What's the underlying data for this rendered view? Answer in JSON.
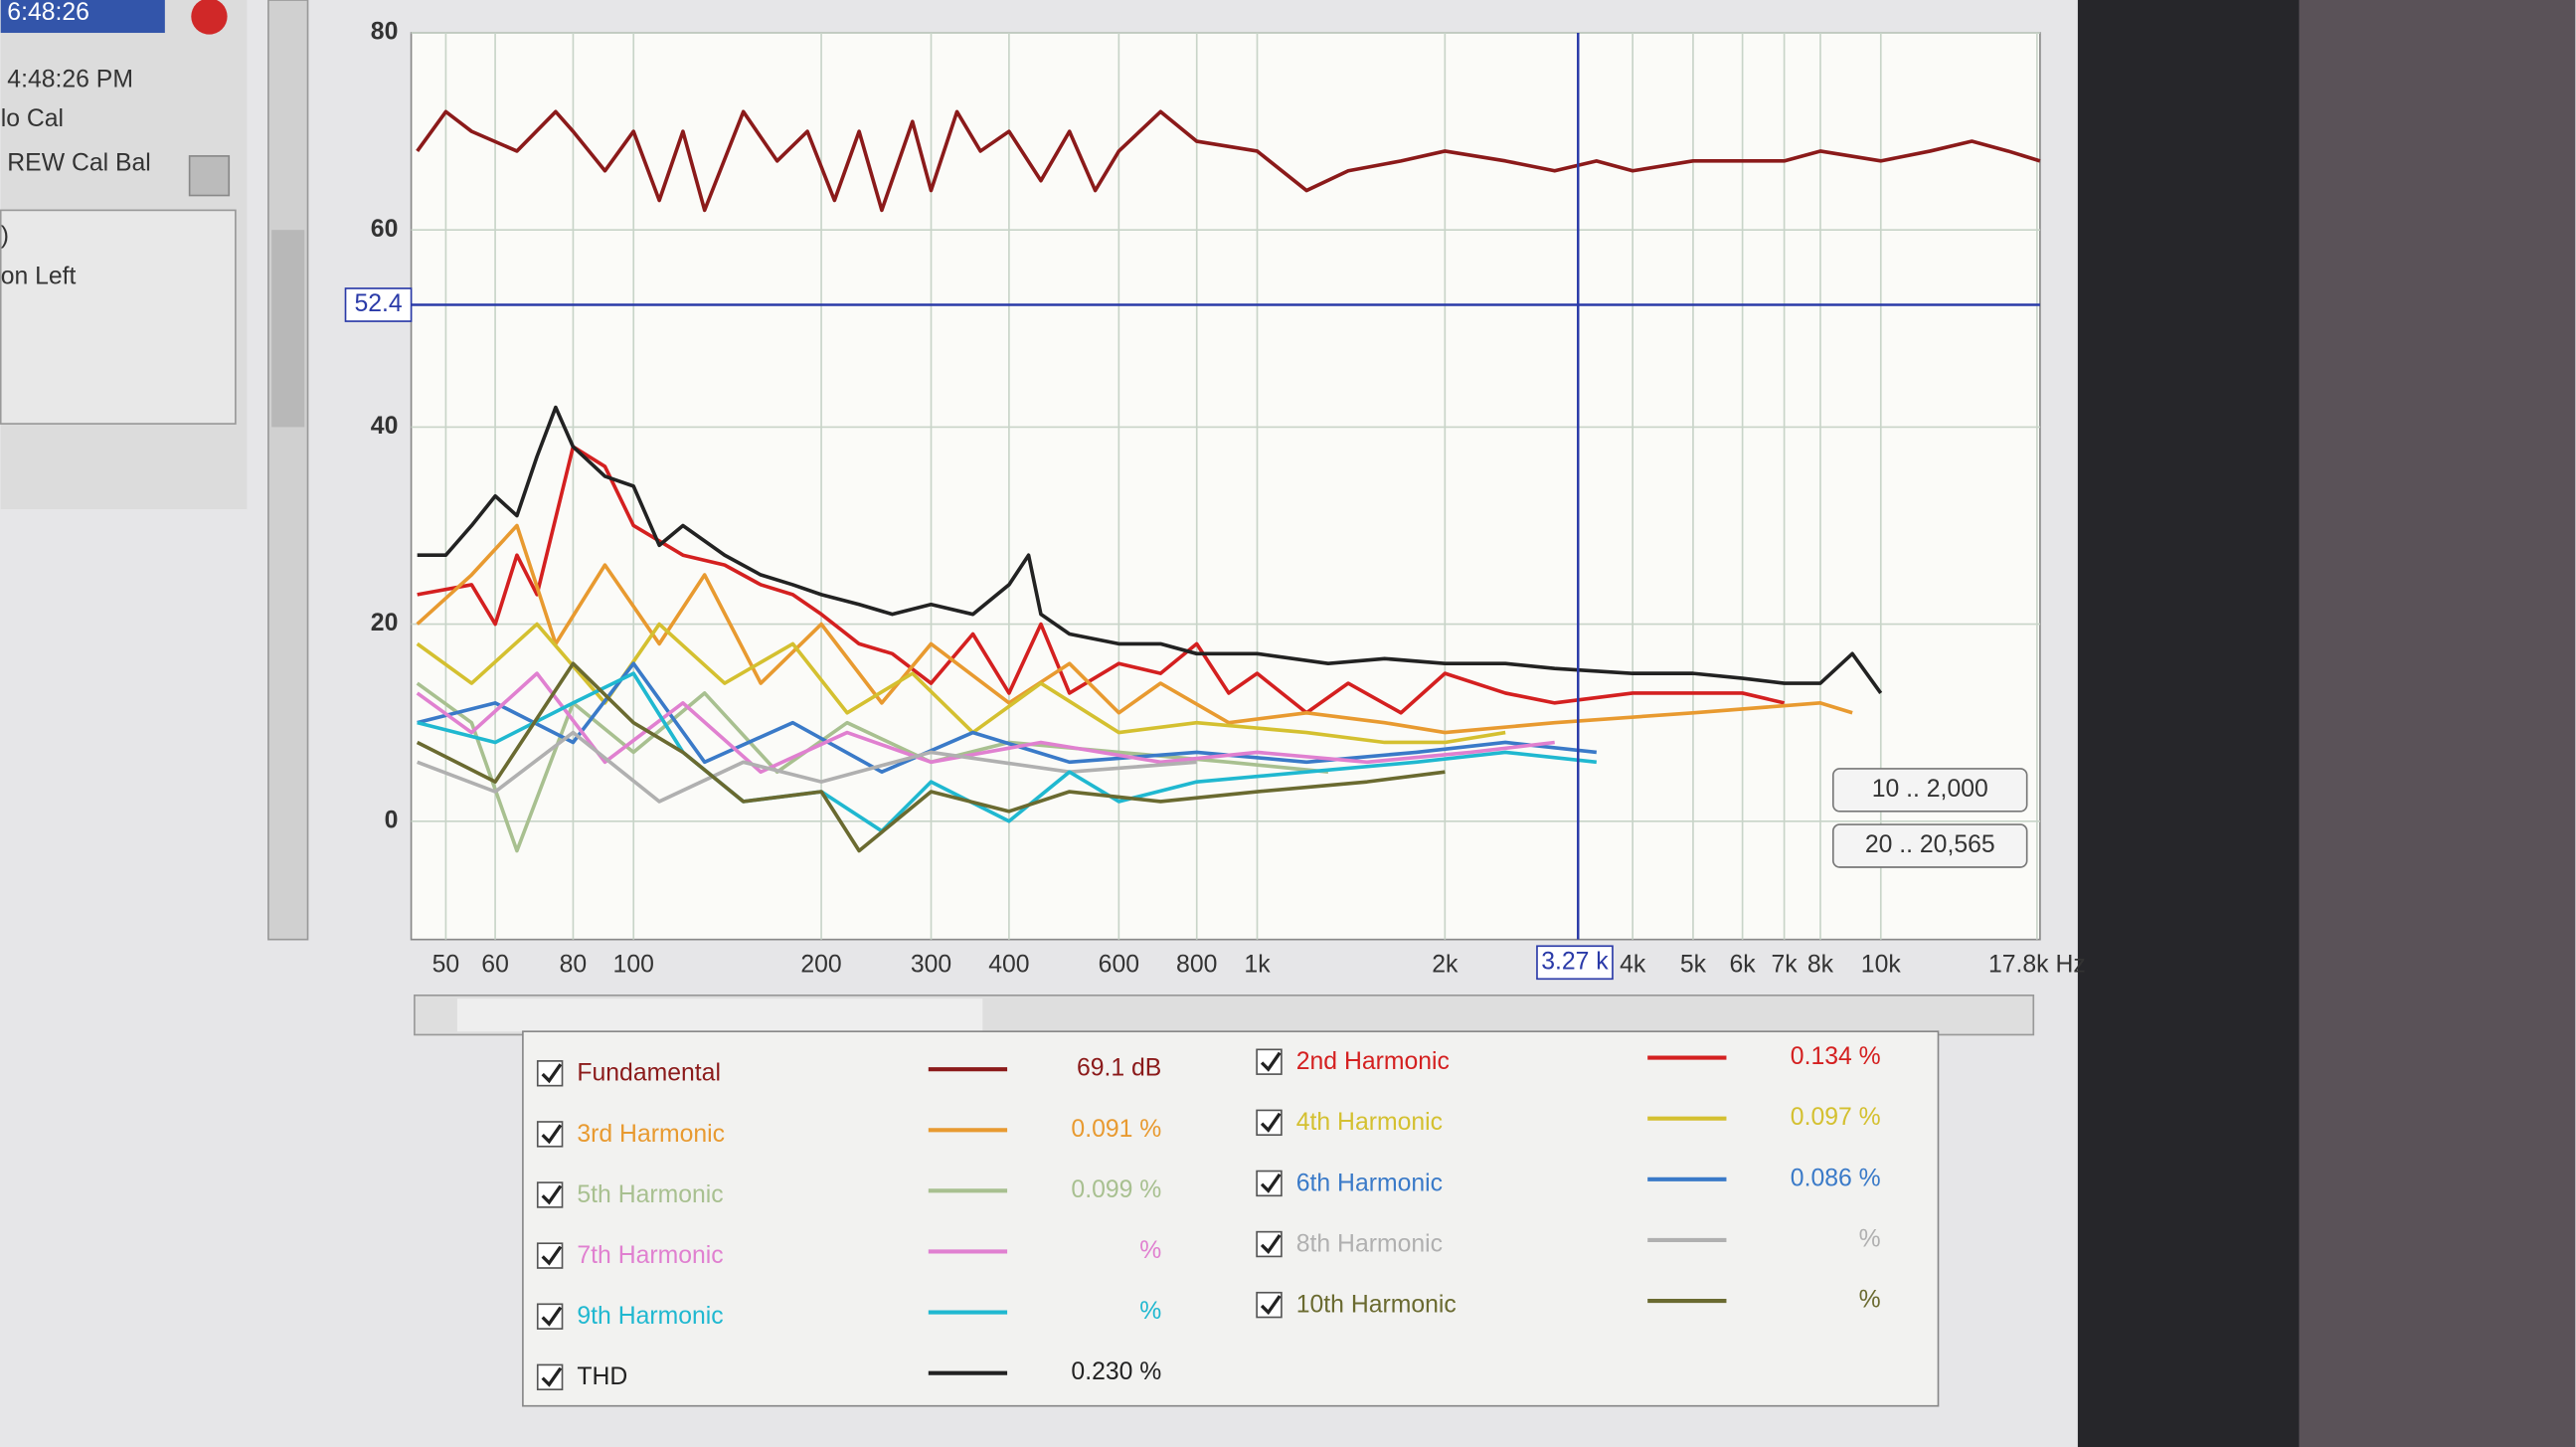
{
  "left_panel": {
    "time_box": "6:48:26",
    "time": "4:48:26 PM",
    "cal": "lo Cal",
    "cal_bal": "REW Cal Bal",
    "paren": ")",
    "channel": "on  Left"
  },
  "range_buttons": [
    "10 .. 2,000",
    "20 .. 20,565"
  ],
  "chart_data": {
    "type": "line",
    "log_x": true,
    "grid": true,
    "xlim": [
      44,
      18000
    ],
    "ylim": [
      -12,
      80
    ],
    "xticks": [
      50,
      60,
      80,
      100,
      200,
      300,
      400,
      600,
      800,
      {
        "value": 1000,
        "label": "1k"
      },
      {
        "value": 2000,
        "label": "2k"
      },
      {
        "value": 4000,
        "label": "4k"
      },
      {
        "value": 5000,
        "label": "5k"
      },
      {
        "value": 6000,
        "label": "6k"
      },
      {
        "value": 7000,
        "label": "7k"
      },
      {
        "value": 8000,
        "label": "8k"
      },
      {
        "value": 10000,
        "label": "10k"
      },
      {
        "value": 17800,
        "label": "17.8k Hz"
      }
    ],
    "yticks": [
      0,
      20,
      40,
      60,
      80
    ],
    "cursor": {
      "x": {
        "value": 3270,
        "label": "3.27 k"
      },
      "y": 52.4
    },
    "series": [
      {
        "name": "Fundamental",
        "color": "#8b1a1a",
        "readout": "69.1 dB",
        "x": [
          45,
          50,
          55,
          65,
          75,
          80,
          90,
          100,
          110,
          120,
          130,
          150,
          170,
          190,
          210,
          230,
          250,
          280,
          300,
          330,
          360,
          400,
          450,
          500,
          550,
          600,
          700,
          800,
          1000,
          1200,
          1400,
          1700,
          2000,
          2500,
          3000,
          3500,
          4000,
          5000,
          6000,
          7000,
          8000,
          10000,
          12000,
          14000,
          16000,
          18000
        ],
        "values": [
          68,
          72,
          70,
          68,
          72,
          70,
          66,
          70,
          63,
          70,
          62,
          72,
          67,
          70,
          63,
          70,
          62,
          71,
          64,
          72,
          68,
          70,
          65,
          70,
          64,
          68,
          72,
          69,
          68,
          64,
          66,
          67,
          68,
          67,
          66,
          67,
          66,
          67,
          67,
          67,
          68,
          67,
          68,
          69,
          68,
          67
        ]
      },
      {
        "name": "2nd Harmonic",
        "color": "#d42020",
        "readout": "0.134 %",
        "x": [
          45,
          55,
          60,
          65,
          70,
          80,
          90,
          100,
          120,
          140,
          160,
          180,
          200,
          230,
          260,
          300,
          350,
          400,
          450,
          500,
          600,
          700,
          800,
          900,
          1000,
          1200,
          1400,
          1700,
          2000,
          2500,
          3000,
          4000,
          5000,
          6000,
          7000
        ],
        "values": [
          23,
          24,
          20,
          27,
          23,
          38,
          36,
          30,
          27,
          26,
          24,
          23,
          21,
          18,
          17,
          14,
          19,
          13,
          20,
          13,
          16,
          15,
          18,
          13,
          15,
          11,
          14,
          11,
          15,
          13,
          12,
          13,
          13,
          13,
          12
        ]
      },
      {
        "name": "3rd Harmonic",
        "color": "#e89a30",
        "readout": "0.091 %",
        "x": [
          45,
          55,
          65,
          75,
          90,
          110,
          130,
          160,
          200,
          250,
          300,
          400,
          500,
          600,
          700,
          900,
          1200,
          1600,
          2000,
          3000,
          5000,
          8000,
          9000
        ],
        "values": [
          20,
          25,
          30,
          18,
          26,
          18,
          25,
          14,
          20,
          12,
          18,
          12,
          16,
          11,
          14,
          10,
          11,
          10,
          9,
          10,
          11,
          12,
          11
        ]
      },
      {
        "name": "4th Harmonic",
        "color": "#d4c030",
        "readout": "0.097 %",
        "x": [
          45,
          55,
          70,
          90,
          110,
          140,
          180,
          220,
          280,
          350,
          450,
          600,
          800,
          1200,
          1600,
          2000,
          2500
        ],
        "values": [
          18,
          14,
          20,
          12,
          20,
          14,
          18,
          11,
          15,
          9,
          14,
          9,
          10,
          9,
          8,
          8,
          9
        ]
      },
      {
        "name": "5th Harmonic",
        "color": "#a8c090",
        "readout": "0.099 %",
        "x": [
          45,
          55,
          65,
          80,
          100,
          130,
          170,
          220,
          300,
          400,
          600,
          900,
          1300
        ],
        "values": [
          14,
          10,
          -3,
          12,
          7,
          13,
          5,
          10,
          6,
          8,
          7,
          6,
          5
        ]
      },
      {
        "name": "6th Harmonic",
        "color": "#3a7ac8",
        "readout": "0.086 %",
        "x": [
          45,
          60,
          80,
          100,
          130,
          180,
          250,
          350,
          500,
          800,
          1200,
          1800,
          2500,
          3500
        ],
        "values": [
          10,
          12,
          8,
          16,
          6,
          10,
          5,
          9,
          6,
          7,
          6,
          7,
          8,
          7
        ]
      },
      {
        "name": "7th Harmonic",
        "color": "#e080d0",
        "readout": "%",
        "x": [
          45,
          55,
          70,
          90,
          120,
          160,
          220,
          300,
          450,
          700,
          1000,
          1500,
          2200,
          3000
        ],
        "values": [
          13,
          9,
          15,
          6,
          12,
          5,
          9,
          6,
          8,
          6,
          7,
          6,
          7,
          8
        ]
      },
      {
        "name": "8th Harmonic",
        "color": "#b0b0b0",
        "readout": "%",
        "x": [
          45,
          60,
          80,
          110,
          150,
          200,
          300,
          500,
          800
        ],
        "values": [
          6,
          3,
          9,
          2,
          6,
          4,
          7,
          5,
          6
        ]
      },
      {
        "name": "9th Harmonic",
        "color": "#20b8d0",
        "readout": "%",
        "x": [
          45,
          60,
          80,
          100,
          120,
          150,
          200,
          250,
          300,
          400,
          500,
          600,
          800,
          1200,
          1800,
          2500,
          3500
        ],
        "values": [
          10,
          8,
          12,
          15,
          7,
          2,
          3,
          -1,
          4,
          0,
          5,
          2,
          4,
          5,
          6,
          7,
          6
        ]
      },
      {
        "name": "10th Harmonic",
        "color": "#6a6a30",
        "readout": "%",
        "x": [
          45,
          60,
          80,
          100,
          120,
          150,
          200,
          230,
          300,
          400,
          500,
          700,
          1000,
          1500,
          2000
        ],
        "values": [
          8,
          4,
          16,
          10,
          7,
          2,
          3,
          -3,
          3,
          1,
          3,
          2,
          3,
          4,
          5
        ]
      },
      {
        "name": "THD",
        "color": "#222222",
        "readout": "0.230 %",
        "x": [
          45,
          50,
          55,
          60,
          65,
          70,
          75,
          80,
          90,
          100,
          110,
          120,
          140,
          160,
          180,
          200,
          230,
          260,
          300,
          350,
          400,
          430,
          450,
          500,
          600,
          700,
          800,
          1000,
          1300,
          1600,
          2000,
          2500,
          3000,
          4000,
          5000,
          6000,
          7000,
          8000,
          9000,
          10000
        ],
        "values": [
          27,
          27,
          30,
          33,
          31,
          37,
          42,
          38,
          35,
          34,
          28,
          30,
          27,
          25,
          24,
          23,
          22,
          21,
          22,
          21,
          24,
          27,
          21,
          19,
          18,
          18,
          17,
          17,
          16,
          16.5,
          16,
          16,
          15.5,
          15,
          15,
          14.5,
          14,
          14,
          17,
          13
        ]
      }
    ]
  }
}
